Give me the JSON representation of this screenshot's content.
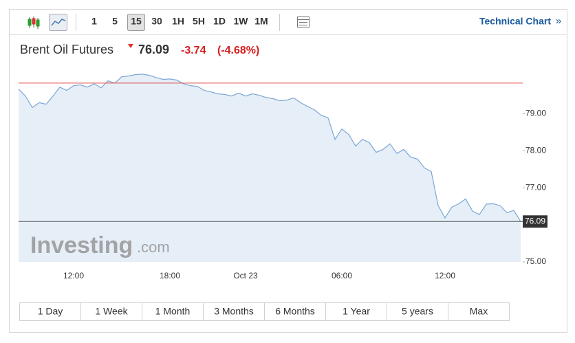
{
  "toolbar": {
    "intervals": [
      "1",
      "5",
      "15",
      "30",
      "1H",
      "5H",
      "1D",
      "1W",
      "1M"
    ],
    "selected_interval": "15",
    "technical_chart": "Technical Chart",
    "technical_arrow": "»"
  },
  "header": {
    "name": "Brent Oil Futures",
    "price": "76.09",
    "change": "-3.74",
    "change_pct": "(-4.68%)"
  },
  "chart_data": {
    "type": "area",
    "categories": [
      null,
      null,
      null,
      null,
      null,
      null,
      null,
      null,
      "12:00",
      null,
      null,
      null,
      null,
      null,
      null,
      null,
      null,
      null,
      null,
      null,
      null,
      null,
      "18:00",
      null,
      null,
      null,
      null,
      null,
      null,
      null,
      null,
      null,
      null,
      "Oct 23",
      null,
      null,
      null,
      null,
      null,
      null,
      null,
      null,
      null,
      null,
      null,
      null,
      null,
      "06:00",
      null,
      null,
      null,
      null,
      null,
      null,
      null,
      null,
      null,
      null,
      null,
      null,
      null,
      null,
      "12:00",
      null,
      null,
      null,
      null,
      null,
      null,
      null,
      null,
      null,
      null,
      null
    ],
    "series": [
      {
        "name": "Brent Oil Futures",
        "color": "#7ba7d6",
        "values": [
          79.67,
          79.48,
          79.17,
          79.3,
          79.26,
          79.48,
          79.72,
          79.63,
          79.76,
          79.78,
          79.72,
          79.81,
          79.7,
          79.89,
          79.83,
          80.0,
          80.02,
          80.06,
          80.07,
          80.04,
          79.98,
          79.93,
          79.94,
          79.91,
          79.81,
          79.76,
          79.74,
          79.63,
          79.59,
          79.54,
          79.52,
          79.48,
          79.56,
          79.48,
          79.54,
          79.5,
          79.44,
          79.41,
          79.35,
          79.37,
          79.43,
          79.3,
          79.2,
          79.11,
          78.96,
          78.89,
          78.31,
          78.59,
          78.44,
          78.13,
          78.31,
          78.22,
          77.96,
          78.04,
          78.19,
          77.93,
          78.04,
          77.83,
          77.78,
          77.54,
          77.44,
          76.52,
          76.19,
          76.48,
          76.57,
          76.7,
          76.37,
          76.28,
          76.56,
          76.57,
          76.52,
          76.33,
          76.39,
          76.09
        ]
      }
    ],
    "fill_color": "#e6eef7",
    "ylim": [
      75,
      80.31
    ],
    "yticks": [
      {
        "value": 75,
        "label": "75.00"
      },
      {
        "value": 77,
        "label": "77.00"
      },
      {
        "value": 78,
        "label": "78.00"
      },
      {
        "value": 79,
        "label": "79.00"
      }
    ],
    "prev_close_line": {
      "value": 79.83,
      "color": "#e04848"
    },
    "last_line": {
      "value": 76.09,
      "color": "#555555"
    },
    "watermark": [
      "Investing",
      ".com"
    ]
  },
  "ranges": [
    "1 Day",
    "1 Week",
    "1 Month",
    "3 Months",
    "6 Months",
    "1 Year",
    "5 years",
    "Max"
  ]
}
